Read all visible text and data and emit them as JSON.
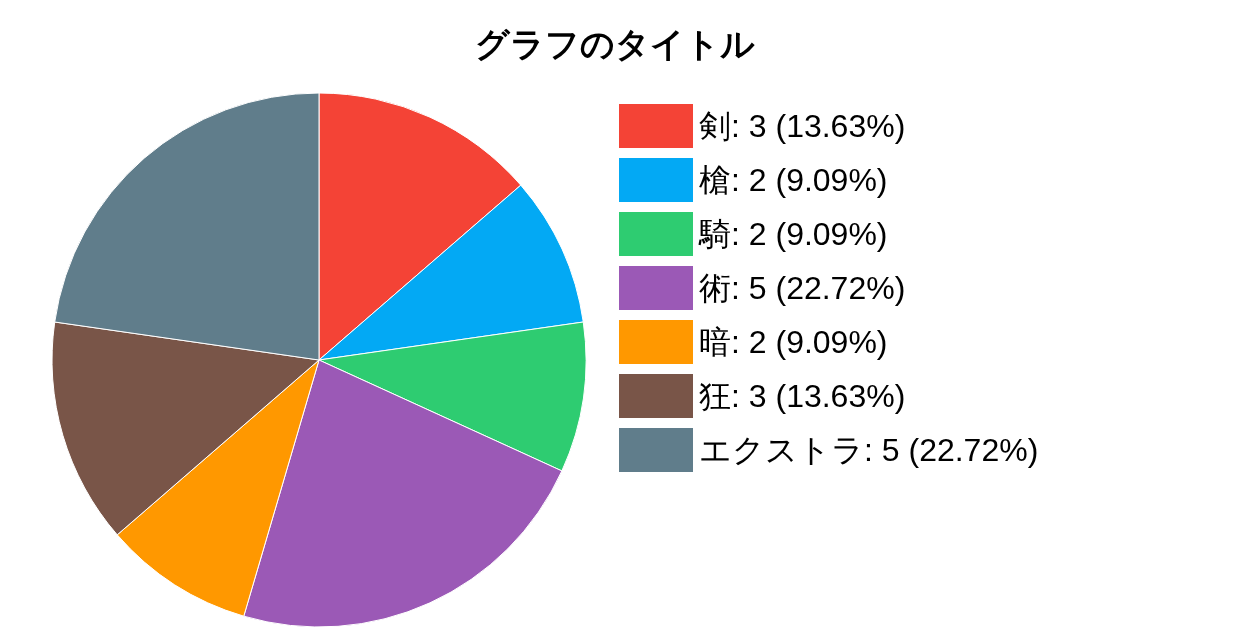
{
  "chart_data": {
    "type": "pie",
    "title": "グラフのタイトル",
    "categories": [
      "剣: 3 (13.63%)",
      "槍: 2 (9.09%)",
      "騎: 2 (9.09%)",
      "術: 5 (22.72%)",
      "暗: 2 (9.09%)",
      "狂: 3 (13.63%)",
      "エクストラ: 5 (22.72%)"
    ],
    "values": [
      3,
      2,
      2,
      5,
      2,
      3,
      5
    ],
    "colors": [
      "#f44336",
      "#03a9f4",
      "#2ecc71",
      "#9b59b6",
      "#ff9800",
      "#795548",
      "#607d8b"
    ],
    "legend": "right"
  }
}
